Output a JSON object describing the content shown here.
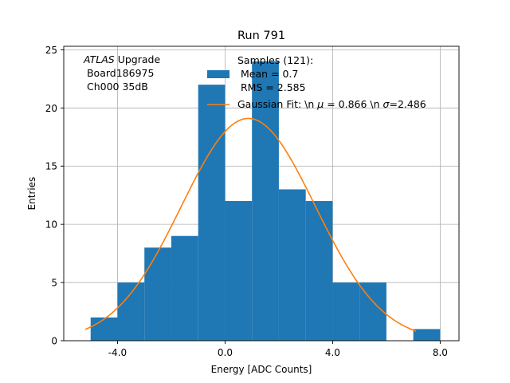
{
  "chart_data": {
    "type": "bar",
    "title": "Run 791",
    "xlabel": "Energy [ADC Counts]",
    "ylabel": "Entries",
    "xlim": [
      -6.0,
      8.7
    ],
    "ylim": [
      0,
      25.3
    ],
    "xticks": [
      -4.0,
      0.0,
      4.0,
      8.0
    ],
    "xtick_labels": [
      "-4.0",
      "0.0",
      "4.0",
      "8.0"
    ],
    "yticks": [
      0,
      5,
      10,
      15,
      20,
      25
    ],
    "ytick_labels": [
      "0",
      "5",
      "10",
      "15",
      "20",
      "25"
    ],
    "grid": true,
    "bins": [
      {
        "x0": -5.0,
        "x1": -4.0,
        "count": 2
      },
      {
        "x0": -4.0,
        "x1": -3.0,
        "count": 5
      },
      {
        "x0": -3.0,
        "x1": -2.0,
        "count": 8
      },
      {
        "x0": -2.0,
        "x1": -1.0,
        "count": 9
      },
      {
        "x0": -1.0,
        "x1": 0.0,
        "count": 22
      },
      {
        "x0": 0.0,
        "x1": 1.0,
        "count": 12
      },
      {
        "x0": 1.0,
        "x1": 2.0,
        "count": 24
      },
      {
        "x0": 2.0,
        "x1": 3.0,
        "count": 13
      },
      {
        "x0": 3.0,
        "x1": 4.0,
        "count": 12
      },
      {
        "x0": 4.0,
        "x1": 5.0,
        "count": 5
      },
      {
        "x0": 5.0,
        "x1": 6.0,
        "count": 5
      },
      {
        "x0": 6.0,
        "x1": 7.0,
        "count": 0
      },
      {
        "x0": 7.0,
        "x1": 8.0,
        "count": 1
      }
    ],
    "fit": {
      "amplitude": 19.1,
      "mu": 0.866,
      "sigma": 2.486,
      "x_start": -5.2,
      "x_end": 7.1
    },
    "colors": {
      "bars": "#1f77b4",
      "fit": "#ff7f0e",
      "grid": "#b0b0b0"
    },
    "annotation": {
      "line1_italic": "ATLAS",
      "line1_rest": " Upgrade",
      "line2": " Board186975",
      "line3": " Ch000 35dB"
    },
    "legend": {
      "placement": "top-center",
      "hist_title": "Samples (121):",
      "hist_mean": " Mean = 0.7",
      "hist_rms": " RMS = 2.585",
      "fit_prefix": "Gaussian Fit: \\n ",
      "fit_mu_symbol": "μ",
      "fit_mu_text": " = 0.866 \\n ",
      "fit_sigma_symbol": "σ",
      "fit_sigma_text": "=2.486"
    }
  }
}
